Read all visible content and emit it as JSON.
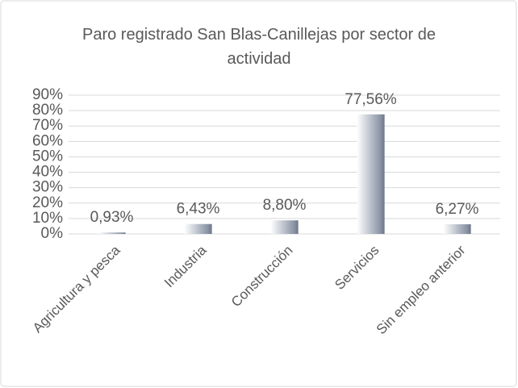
{
  "chart_data": {
    "type": "bar",
    "title": "Paro registrado San Blas-Canillejas por sector de actividad",
    "categories": [
      "Agricultura y pesca",
      "Industria",
      "Construcción",
      "Servicios",
      "Sin empleo anterior"
    ],
    "values": [
      0.93,
      6.43,
      8.8,
      77.56,
      6.27
    ],
    "value_labels": [
      "0,93%",
      "6,43%",
      "8,80%",
      "77,56%",
      "6,27%"
    ],
    "color": "#a9b3c4",
    "ylim": [
      0,
      90
    ],
    "yticks": [
      {
        "value": 0,
        "label": "0%"
      },
      {
        "value": 10,
        "label": "10%"
      },
      {
        "value": 20,
        "label": "20%"
      },
      {
        "value": 30,
        "label": "30%"
      },
      {
        "value": 40,
        "label": "40%"
      },
      {
        "value": 50,
        "label": "50%"
      },
      {
        "value": 60,
        "label": "60%"
      },
      {
        "value": 70,
        "label": "70%"
      },
      {
        "value": 80,
        "label": "80%"
      },
      {
        "value": 90,
        "label": "90%"
      }
    ],
    "grid": true
  }
}
